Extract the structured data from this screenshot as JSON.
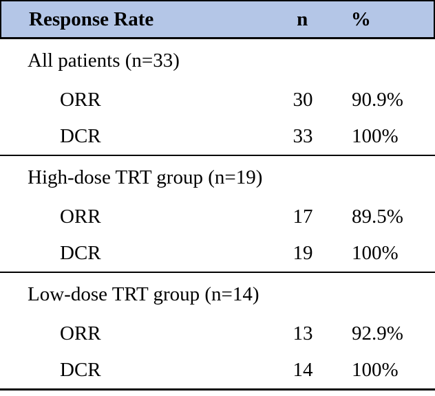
{
  "colors": {
    "header_bg": "#b4c6e7",
    "border": "#000000",
    "text": "#000000"
  },
  "table": {
    "header": {
      "response_rate": "Response Rate",
      "n": "n",
      "percent": "%"
    },
    "sections": [
      {
        "group_label": "All patients (n=33)",
        "rows": [
          {
            "label": "ORR",
            "n": "30",
            "pct": "90.9%"
          },
          {
            "label": "DCR",
            "n": "33",
            "pct": "100%"
          }
        ]
      },
      {
        "group_label": "High-dose TRT group (n=19)",
        "rows": [
          {
            "label": "ORR",
            "n": "17",
            "pct": "89.5%"
          },
          {
            "label": "DCR",
            "n": "19",
            "pct": "100%"
          }
        ]
      },
      {
        "group_label": "Low-dose TRT group (n=14)",
        "rows": [
          {
            "label": "ORR",
            "n": "13",
            "pct": "92.9%"
          },
          {
            "label": "DCR",
            "n": "14",
            "pct": "100%"
          }
        ]
      }
    ]
  }
}
